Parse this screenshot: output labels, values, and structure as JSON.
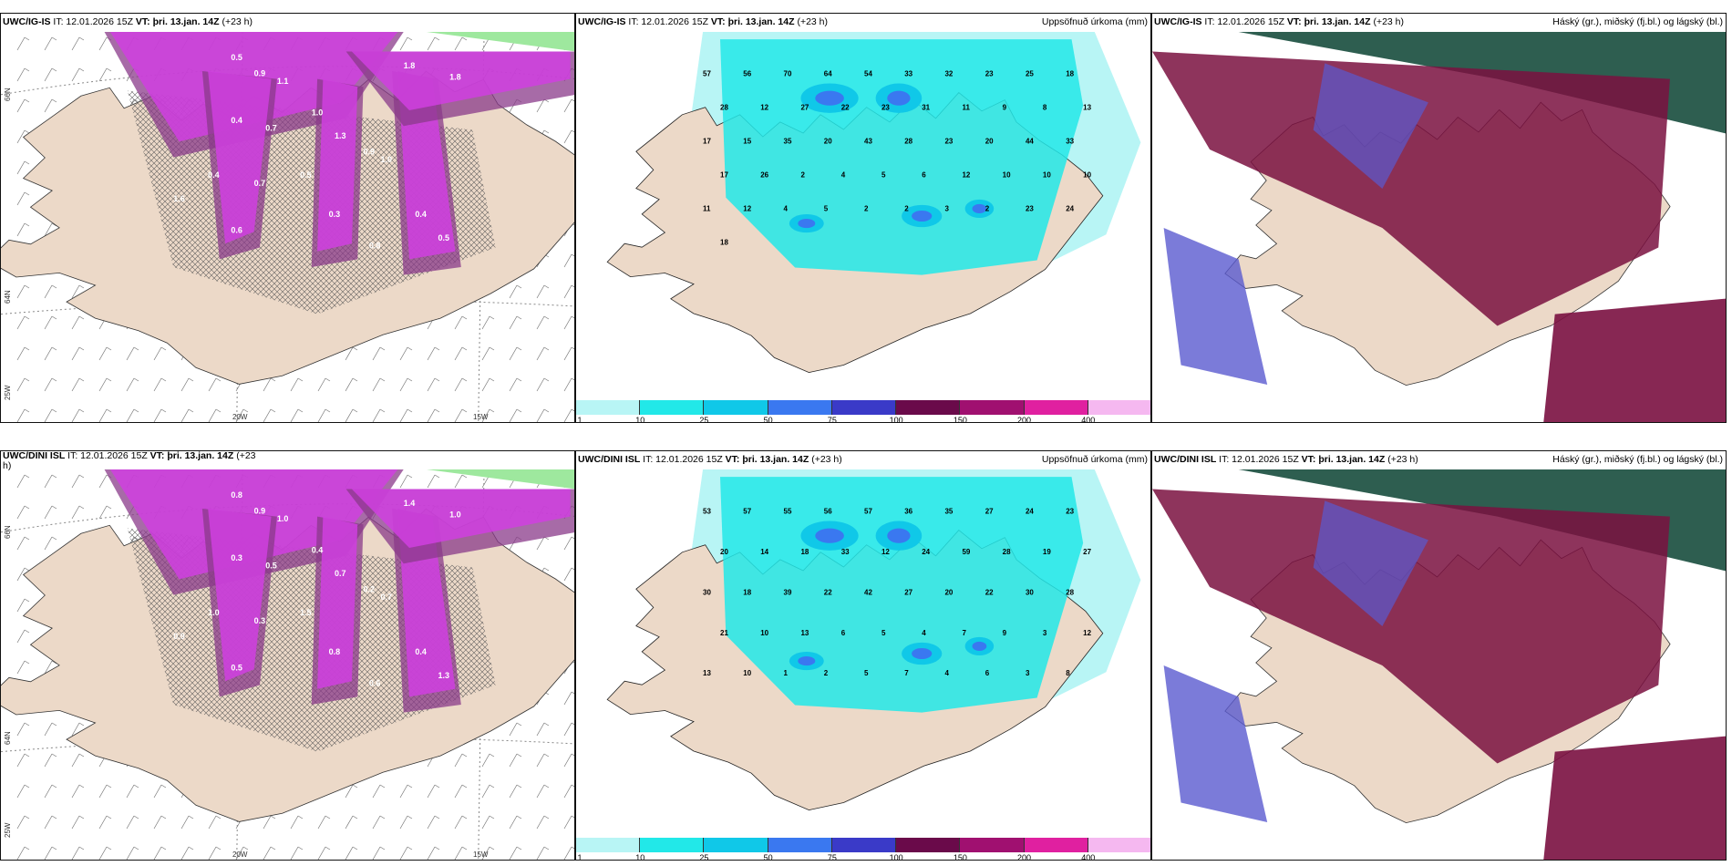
{
  "palette": {
    "land": "#ecd9c8",
    "sea": "#ffffff",
    "precip": [
      "#b8f5f5",
      "#22e8e8",
      "#10c8e8",
      "#3a78f0",
      "#3a3ac8",
      "#6a0a4a",
      "#a01070",
      "#e020a0",
      "#f5b8f0"
    ],
    "precip_edges": [
      "1",
      "10",
      "25",
      "50",
      "75",
      "100",
      "150",
      "200",
      "400",
      ""
    ],
    "snow_magenta": "#d040e0",
    "snow_dark": "#8a3a8a",
    "cloud_high": "#2e5e50",
    "cloud_mid": "#7a1040",
    "cloud_low": "#5a5ad0"
  },
  "rows": [
    {
      "snow": {
        "title_bold": "UWC/IG-IS",
        "title_rest": " IT: 12.01.2026 15Z ",
        "vt_bold": "VT: þri. 13.jan. 14Z",
        "lead": " (+23 h)",
        "axes": {
          "lat66": "66N",
          "lat64": "64N",
          "lon25": "25W",
          "lon20": "20W",
          "lon15": "15W"
        },
        "labels": [
          "0.5",
          "0.9",
          "1.1",
          "1.8",
          "1.8",
          "0.4",
          "0.7",
          "1.0",
          "1.3",
          "0.9",
          "0.4",
          "0.7",
          "0.5",
          "0.3",
          "1.0",
          "0.6",
          "0.4",
          "0.5",
          "0.8",
          "1.6"
        ]
      },
      "precip": {
        "title_bold": "UWC/IG-IS",
        "title_rest": " IT: 12.01.2026 15Z ",
        "vt_bold": "VT: þri. 13.jan. 14Z",
        "lead": " (+23 h)",
        "right": "Uppsöfnuð úrkoma (mm)",
        "values": [
          "57",
          "56",
          "70",
          "64",
          "54",
          "33",
          "32",
          "23",
          "25",
          "18",
          "28",
          "12",
          "27",
          "22",
          "23",
          "31",
          "11",
          "9",
          "8",
          "13",
          "17",
          "15",
          "35",
          "20",
          "43",
          "28",
          "23",
          "20",
          "44",
          "33",
          "17",
          "26",
          "2",
          "4",
          "5",
          "6",
          "12",
          "10",
          "10",
          "10",
          "11",
          "12",
          "4",
          "5",
          "2",
          "2",
          "3",
          "2",
          "23",
          "24",
          "18"
        ]
      },
      "cloud": {
        "title_bold": "UWC/IG-IS",
        "title_rest": " IT: 12.01.2026 15Z ",
        "vt_bold": "VT: þri. 13.jan. 14Z",
        "lead": " (+23 h)",
        "right": "Háský (gr.), miðský (fj.bl.) og lágský (bl.)"
      }
    },
    {
      "snow": {
        "title_bold": "UWC/DINI ISL",
        "title_rest": " IT: 12.01.2026 15Z ",
        "vt_bold": "VT: þri. 13.jan. 14Z",
        "lead": " (+23",
        "lead2": "h)",
        "axes": {
          "lat66": "66N",
          "lat64": "64N",
          "lon25": "25W",
          "lon20": "20W",
          "lon15": "15W"
        },
        "labels": [
          "0.8",
          "0.9",
          "1.0",
          "1.4",
          "1.0",
          "0.3",
          "0.5",
          "0.4",
          "0.7",
          "0.2",
          "1.0",
          "0.3",
          "1.5",
          "0.8",
          "0.7",
          "0.5",
          "0.4",
          "1.3",
          "0.6",
          "0.9"
        ]
      },
      "precip": {
        "title_bold": "UWC/DINI ISL",
        "title_rest": " IT: 12.01.2026 15Z ",
        "vt_bold": "VT: þri. 13.jan. 14Z",
        "lead": " (+23 h)",
        "right": "Uppsöfnuð úrkoma (mm)",
        "values": [
          "53",
          "57",
          "55",
          "56",
          "57",
          "36",
          "35",
          "27",
          "24",
          "23",
          "20",
          "14",
          "18",
          "33",
          "12",
          "24",
          "59",
          "28",
          "19",
          "27",
          "30",
          "18",
          "39",
          "22",
          "42",
          "27",
          "20",
          "22",
          "30",
          "28",
          "21",
          "10",
          "13",
          "6",
          "5",
          "4",
          "7",
          "9",
          "3",
          "12",
          "13",
          "10",
          "1",
          "2",
          "5",
          "7",
          "4",
          "6",
          "3",
          "8"
        ]
      },
      "cloud": {
        "title_bold": "UWC/DINI ISL",
        "title_rest": " IT: 12.01.2026 15Z ",
        "vt_bold": "VT: þri. 13.jan. 14Z",
        "lead": " (+23 h)",
        "right": "Háský (gr.), miðský (fj.bl.) og lágský (bl.)"
      }
    }
  ]
}
